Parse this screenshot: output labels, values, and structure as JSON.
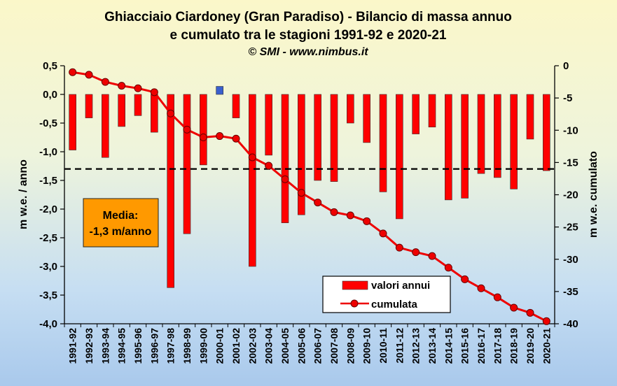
{
  "chart_data": {
    "type": "bar",
    "title_line1": "Ghiacciaio Ciardoney (Gran Paradiso) - Bilancio di massa annuo",
    "title_line2": "e cumulato tra le stagioni 1991-92 e 2020-21",
    "subtitle": "© SMI - www.nimbus.it",
    "ylabel_left": "m w.e. / anno",
    "ylabel_right": "m w.e. cumulato",
    "ylim_left": [
      -4.0,
      0.5
    ],
    "ylim_right": [
      -40,
      0
    ],
    "yticks_left": [
      "0,5",
      "0,0",
      "-0,5",
      "-1,0",
      "-1,5",
      "-2,0",
      "-2,5",
      "-3,0",
      "-3,5",
      "-4,0"
    ],
    "yticks_right": [
      "0",
      "-5",
      "-10",
      "-15",
      "-20",
      "-25",
      "-30",
      "-35",
      "-40"
    ],
    "categories": [
      "1991-92",
      "1992-93",
      "1993-94",
      "1994-95",
      "1995-96",
      "1996-97",
      "1997-98",
      "1998-99",
      "1999-00",
      "2000-01",
      "2001-02",
      "2002-03",
      "2003-04",
      "2004-05",
      "2005-06",
      "2006-07",
      "2007-08",
      "2008-09",
      "2009-10",
      "2010-11",
      "2011-12",
      "2012-13",
      "2013-14",
      "2014-15",
      "2015-16",
      "2016-17",
      "2017-18",
      "2018-19",
      "2019-20",
      "2020-21"
    ],
    "series": [
      {
        "name": "valori annui",
        "axis": "left",
        "type": "bar",
        "values": [
          -0.97,
          -0.41,
          -1.1,
          -0.56,
          -0.37,
          -0.66,
          -3.37,
          -2.43,
          -1.23,
          0.14,
          -0.41,
          -3.0,
          -1.06,
          -2.24,
          -2.1,
          -1.5,
          -1.52,
          -0.5,
          -0.84,
          -1.7,
          -2.17,
          -0.69,
          -0.57,
          -1.84,
          -1.81,
          -1.38,
          -1.45,
          -1.65,
          -0.78,
          -1.33
        ]
      },
      {
        "name": "cumulata",
        "axis": "right",
        "type": "line",
        "values": [
          -1.0,
          -1.4,
          -2.5,
          -3.1,
          -3.5,
          -4.1,
          -7.4,
          -9.9,
          -11.1,
          -10.9,
          -11.3,
          -14.2,
          -15.5,
          -17.6,
          -19.7,
          -21.2,
          -22.7,
          -23.2,
          -24.1,
          -26.0,
          -28.2,
          -28.9,
          -29.5,
          -31.3,
          -33.1,
          -34.5,
          -35.9,
          -37.5,
          -38.3,
          -39.6
        ]
      }
    ],
    "mean_line": {
      "value": -1.3,
      "style": "dashed"
    },
    "media_box": {
      "line1": "Media:",
      "line2": "-1,3 m/anno"
    },
    "colors": {
      "bar": "#ff0000",
      "bar_positive": "#3a5fcd",
      "line": "#ee0000",
      "mean_line": "#000000",
      "media_box": "#ff9900"
    }
  }
}
